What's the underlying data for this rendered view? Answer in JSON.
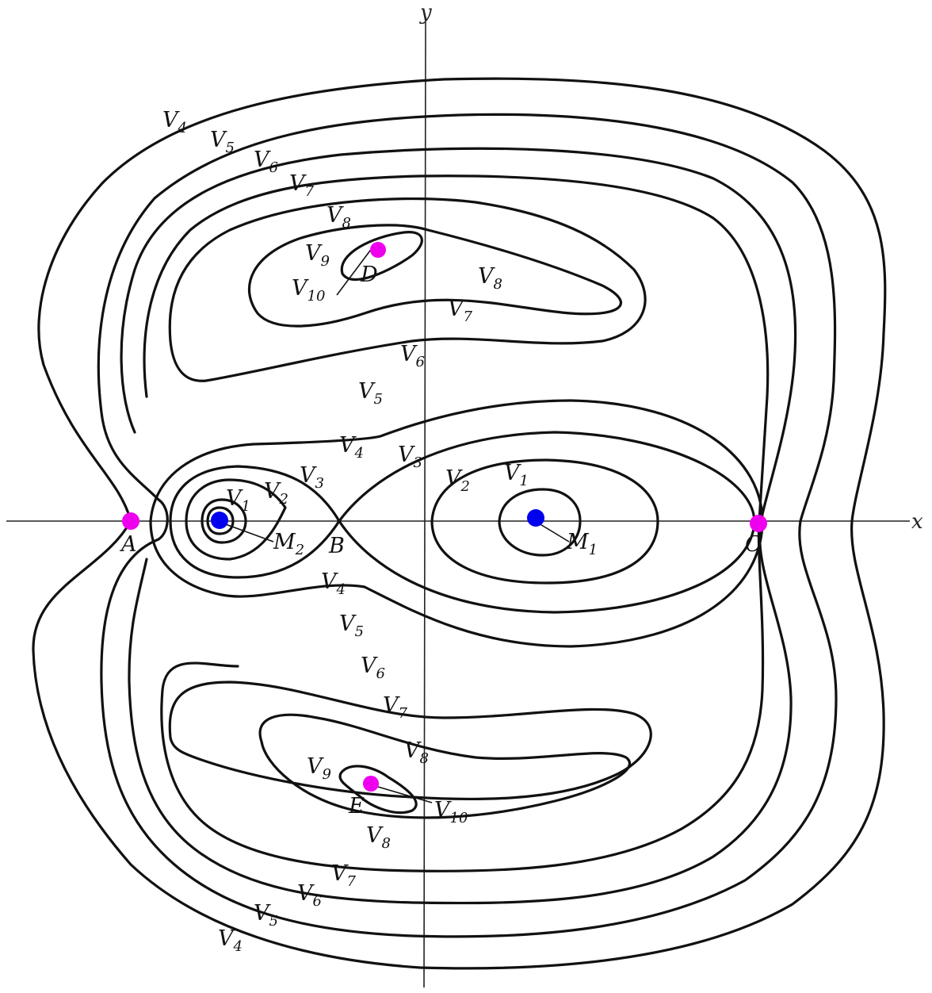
{
  "axes": {
    "x_label": "x",
    "y_label": "y"
  },
  "contours": [
    "V1",
    "V2",
    "V3",
    "V4",
    "V5",
    "V6",
    "V7",
    "V8",
    "V9",
    "V10"
  ],
  "contour_labels": [
    {
      "id": "v4-tl",
      "base": "V",
      "sub": "4"
    },
    {
      "id": "v5-tl",
      "base": "V",
      "sub": "5"
    },
    {
      "id": "v6-tl",
      "base": "V",
      "sub": "6"
    },
    {
      "id": "v7-tl",
      "base": "V",
      "sub": "7"
    },
    {
      "id": "v8-tl",
      "base": "V",
      "sub": "8"
    },
    {
      "id": "v9-d",
      "base": "V",
      "sub": "9"
    },
    {
      "id": "v10-d",
      "base": "V",
      "sub": "10"
    },
    {
      "id": "v8-r",
      "base": "V",
      "sub": "8"
    },
    {
      "id": "v7-m",
      "base": "V",
      "sub": "7"
    },
    {
      "id": "v6-m",
      "base": "V",
      "sub": "6"
    },
    {
      "id": "v5-m",
      "base": "V",
      "sub": "5"
    },
    {
      "id": "v4-m",
      "base": "V",
      "sub": "4"
    },
    {
      "id": "v3-r",
      "base": "V",
      "sub": "3"
    },
    {
      "id": "v3-l",
      "base": "V",
      "sub": "3"
    },
    {
      "id": "v2-l",
      "base": "V",
      "sub": "2"
    },
    {
      "id": "v1-l",
      "base": "V",
      "sub": "1"
    },
    {
      "id": "v2-r",
      "base": "V",
      "sub": "2"
    },
    {
      "id": "v1-r",
      "base": "V",
      "sub": "1"
    },
    {
      "id": "v4-b",
      "base": "V",
      "sub": "4"
    },
    {
      "id": "v5-b",
      "base": "V",
      "sub": "5"
    },
    {
      "id": "v6-b",
      "base": "V",
      "sub": "6"
    },
    {
      "id": "v7-b",
      "base": "V",
      "sub": "7"
    },
    {
      "id": "v8-b",
      "base": "V",
      "sub": "8"
    },
    {
      "id": "v9-e",
      "base": "V",
      "sub": "9"
    },
    {
      "id": "v10-e",
      "base": "V",
      "sub": "10"
    },
    {
      "id": "v8-bb",
      "base": "V",
      "sub": "8"
    },
    {
      "id": "v7-bb",
      "base": "V",
      "sub": "7"
    },
    {
      "id": "v6-bb",
      "base": "V",
      "sub": "6"
    },
    {
      "id": "v5-bb",
      "base": "V",
      "sub": "5"
    },
    {
      "id": "v4-bb",
      "base": "V",
      "sub": "4"
    }
  ],
  "points": [
    {
      "id": "A",
      "label": "A",
      "kind": "lagrange",
      "color": "#ee00ee"
    },
    {
      "id": "B",
      "label": "B",
      "kind": "saddle"
    },
    {
      "id": "C",
      "label": "C",
      "kind": "lagrange",
      "color": "#ee00ee"
    },
    {
      "id": "D",
      "label": "D",
      "kind": "lagrange",
      "color": "#ee00ee"
    },
    {
      "id": "E",
      "label": "E",
      "kind": "lagrange",
      "color": "#ee00ee"
    }
  ],
  "masses": [
    {
      "id": "M1",
      "base": "M",
      "sub": "1",
      "color": "#0000ee"
    },
    {
      "id": "M2",
      "base": "M",
      "sub": "2",
      "color": "#0000ee"
    }
  ]
}
